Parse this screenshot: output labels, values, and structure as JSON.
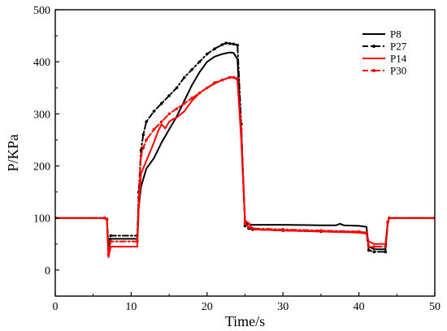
{
  "chart_data": {
    "type": "line",
    "xlabel": "Time/s",
    "ylabel": "P/KPa",
    "xlim": [
      0,
      50
    ],
    "ylim": [
      -50,
      500
    ],
    "xticks": [
      0,
      10,
      20,
      30,
      40,
      50
    ],
    "yticks": [
      0,
      100,
      200,
      300,
      400,
      500
    ],
    "grid": false,
    "legend_position": "top-right",
    "series": [
      {
        "name": "P8",
        "color": "#000000",
        "style": "solid",
        "x": [
          0,
          6.5,
          6.8,
          7.0,
          7.3,
          10.8,
          11.0,
          11.3,
          12.0,
          13.0,
          14.0,
          15.0,
          16.0,
          17.0,
          18.0,
          19.0,
          20.0,
          21.0,
          22.0,
          23.0,
          23.5,
          24.0,
          24.5,
          25.0,
          25.5,
          26.0,
          30.0,
          35.0,
          37.0,
          37.5,
          38.0,
          40.0,
          41.0,
          41.3,
          42.0,
          43.5,
          43.8,
          44.0,
          50.0
        ],
        "y": [
          100,
          100,
          98,
          40,
          60,
          60,
          120,
          160,
          195,
          215,
          245,
          270,
          295,
          325,
          355,
          380,
          400,
          410,
          415,
          418,
          417,
          405,
          260,
          90,
          88,
          87,
          87,
          86,
          86,
          89,
          86,
          85,
          83,
          45,
          40,
          40,
          92,
          100,
          100
        ]
      },
      {
        "name": "P27",
        "color": "#000000",
        "style": "dashdot",
        "x": [
          0,
          6.5,
          6.8,
          7.0,
          7.3,
          10.8,
          11.0,
          11.3,
          11.6,
          12.0,
          13.0,
          14.0,
          15.0,
          16.0,
          17.0,
          18.0,
          19.0,
          20.0,
          21.0,
          22.0,
          22.5,
          23.0,
          23.5,
          24.0,
          24.5,
          25.0,
          25.5,
          26.0,
          30.0,
          35.0,
          40.0,
          41.0,
          41.3,
          42.0,
          43.5,
          43.8,
          44.0,
          50.0
        ],
        "y": [
          100,
          100,
          98,
          50,
          66,
          66,
          150,
          230,
          260,
          285,
          305,
          320,
          335,
          350,
          370,
          385,
          400,
          415,
          425,
          433,
          436,
          435,
          434,
          432,
          280,
          85,
          80,
          78,
          76,
          74,
          73,
          72,
          38,
          35,
          35,
          92,
          100,
          100
        ]
      },
      {
        "name": "P14",
        "color": "#ff0000",
        "style": "solid",
        "x": [
          0,
          6.5,
          6.8,
          7.0,
          7.3,
          10.8,
          11.0,
          11.3,
          12.0,
          13.0,
          13.5,
          14.0,
          14.5,
          15.0,
          15.5,
          16.0,
          17.0,
          18.0,
          19.0,
          20.0,
          21.0,
          22.0,
          23.0,
          23.5,
          24.0,
          24.5,
          25.0,
          25.5,
          26.0,
          30.0,
          35.0,
          40.0,
          41.0,
          41.3,
          42.0,
          43.5,
          43.8,
          44.0,
          50.0
        ],
        "y": [
          100,
          100,
          98,
          25,
          45,
          45,
          120,
          185,
          210,
          245,
          265,
          280,
          272,
          285,
          290,
          293,
          305,
          325,
          340,
          350,
          358,
          365,
          370,
          370,
          365,
          250,
          95,
          90,
          78,
          76,
          74,
          72,
          70,
          55,
          50,
          50,
          92,
          100,
          100
        ]
      },
      {
        "name": "P30",
        "color": "#ff0000",
        "style": "dashdot",
        "x": [
          0,
          6.5,
          6.8,
          7.0,
          7.3,
          10.8,
          11.0,
          11.3,
          11.6,
          12.0,
          13.0,
          14.0,
          15.0,
          16.0,
          17.0,
          18.0,
          19.0,
          20.0,
          21.0,
          22.0,
          23.0,
          23.5,
          24.0,
          24.5,
          25.0,
          25.5,
          26.0,
          30.0,
          35.0,
          40.0,
          41.0,
          41.3,
          42.0,
          43.5,
          43.8,
          44.0,
          50.0
        ],
        "y": [
          100,
          100,
          97,
          30,
          55,
          55,
          140,
          220,
          235,
          250,
          270,
          285,
          300,
          310,
          320,
          330,
          340,
          350,
          360,
          365,
          370,
          370,
          368,
          270,
          90,
          82,
          80,
          78,
          76,
          74,
          72,
          45,
          45,
          45,
          92,
          100,
          100
        ]
      }
    ]
  }
}
